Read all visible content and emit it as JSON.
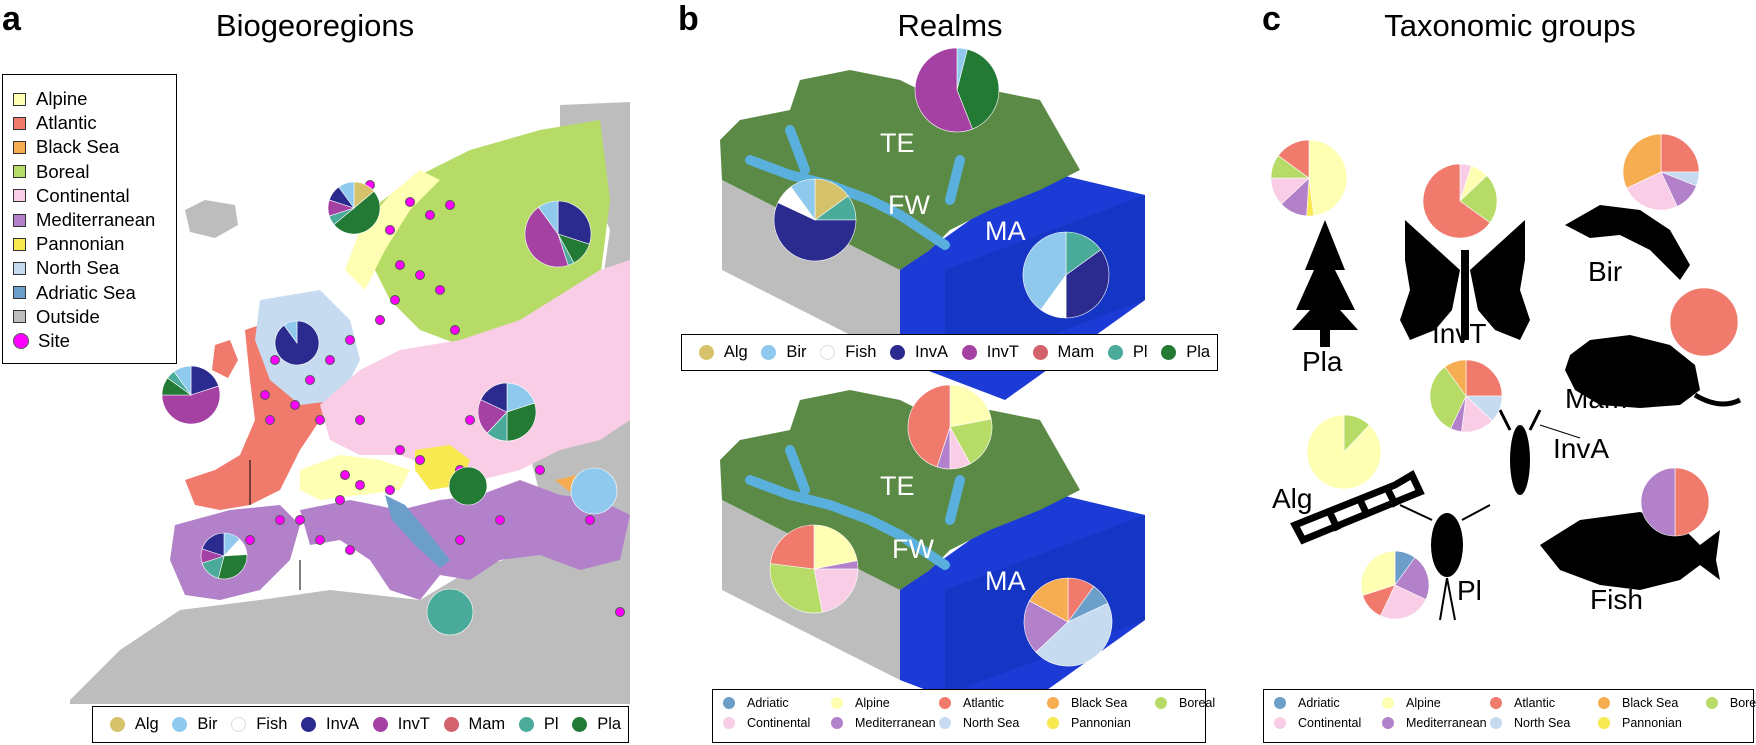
{
  "panels": {
    "a": {
      "letter": "a",
      "title": "Biogeoregions"
    },
    "b": {
      "letter": "b",
      "title": "Realms"
    },
    "c": {
      "letter": "c",
      "title": "Taxonomic groups"
    }
  },
  "biogeoregion_legend": [
    {
      "label": "Alpine",
      "color": "#ffffb3"
    },
    {
      "label": "Atlantic",
      "color": "#f07a6c"
    },
    {
      "label": "Black Sea",
      "color": "#f6ad52"
    },
    {
      "label": "Boreal",
      "color": "#b6dc67"
    },
    {
      "label": "Continental",
      "color": "#f8cde5"
    },
    {
      "label": "Mediterranean",
      "color": "#b381c9"
    },
    {
      "label": "Pannonian",
      "color": "#f7e94f"
    },
    {
      "label": "North Sea",
      "color": "#c6dbef"
    },
    {
      "label": "Adriatic Sea",
      "color": "#6b9ec9"
    },
    {
      "label": "Outside",
      "color": "#bdbdbd"
    },
    {
      "label": "Site",
      "color": "#ff00ff",
      "marker": "dot"
    }
  ],
  "taxon_legend": [
    {
      "label": "Alg",
      "color": "#d5c26a"
    },
    {
      "label": "Bir",
      "color": "#8fcaee"
    },
    {
      "label": "Fish",
      "color": "#ffffff"
    },
    {
      "label": "InvA",
      "color": "#2b2a8e"
    },
    {
      "label": "InvT",
      "color": "#a441a3"
    },
    {
      "label": "Mam",
      "color": "#d2636c"
    },
    {
      "label": "Pl",
      "color": "#4aab9a"
    },
    {
      "label": "Pla",
      "color": "#237a35"
    }
  ],
  "region_legend": [
    {
      "label": "Adriatic",
      "color": "#6b9ec9"
    },
    {
      "label": "Alpine",
      "color": "#ffffb3"
    },
    {
      "label": "Atlantic",
      "color": "#f07a6c"
    },
    {
      "label": "Black Sea",
      "color": "#f6ad52"
    },
    {
      "label": "Boreal",
      "color": "#b6dc67"
    },
    {
      "label": "Continental",
      "color": "#f8cde5"
    },
    {
      "label": "Mediterranean",
      "color": "#b381c9"
    },
    {
      "label": "North Sea",
      "color": "#c6dbef"
    },
    {
      "label": "Pannonian",
      "color": "#f7e94f"
    }
  ],
  "realm_labels": [
    "TE",
    "FW",
    "MA"
  ],
  "taxon_group_labels": {
    "Pla": "Pla",
    "InvT": "InvT",
    "Bir": "Bir",
    "Mam": "Mam",
    "InvA": "InvA",
    "Alg": "Alg",
    "Pl": "Pl",
    "Fish": "Fish"
  },
  "colors": {
    "terrestrial": "#5a8a45",
    "freshwater": "#5ab0dc",
    "marine": "#1c3bd6",
    "outside": "#bdbdbd",
    "site": "#ff00ff"
  }
}
